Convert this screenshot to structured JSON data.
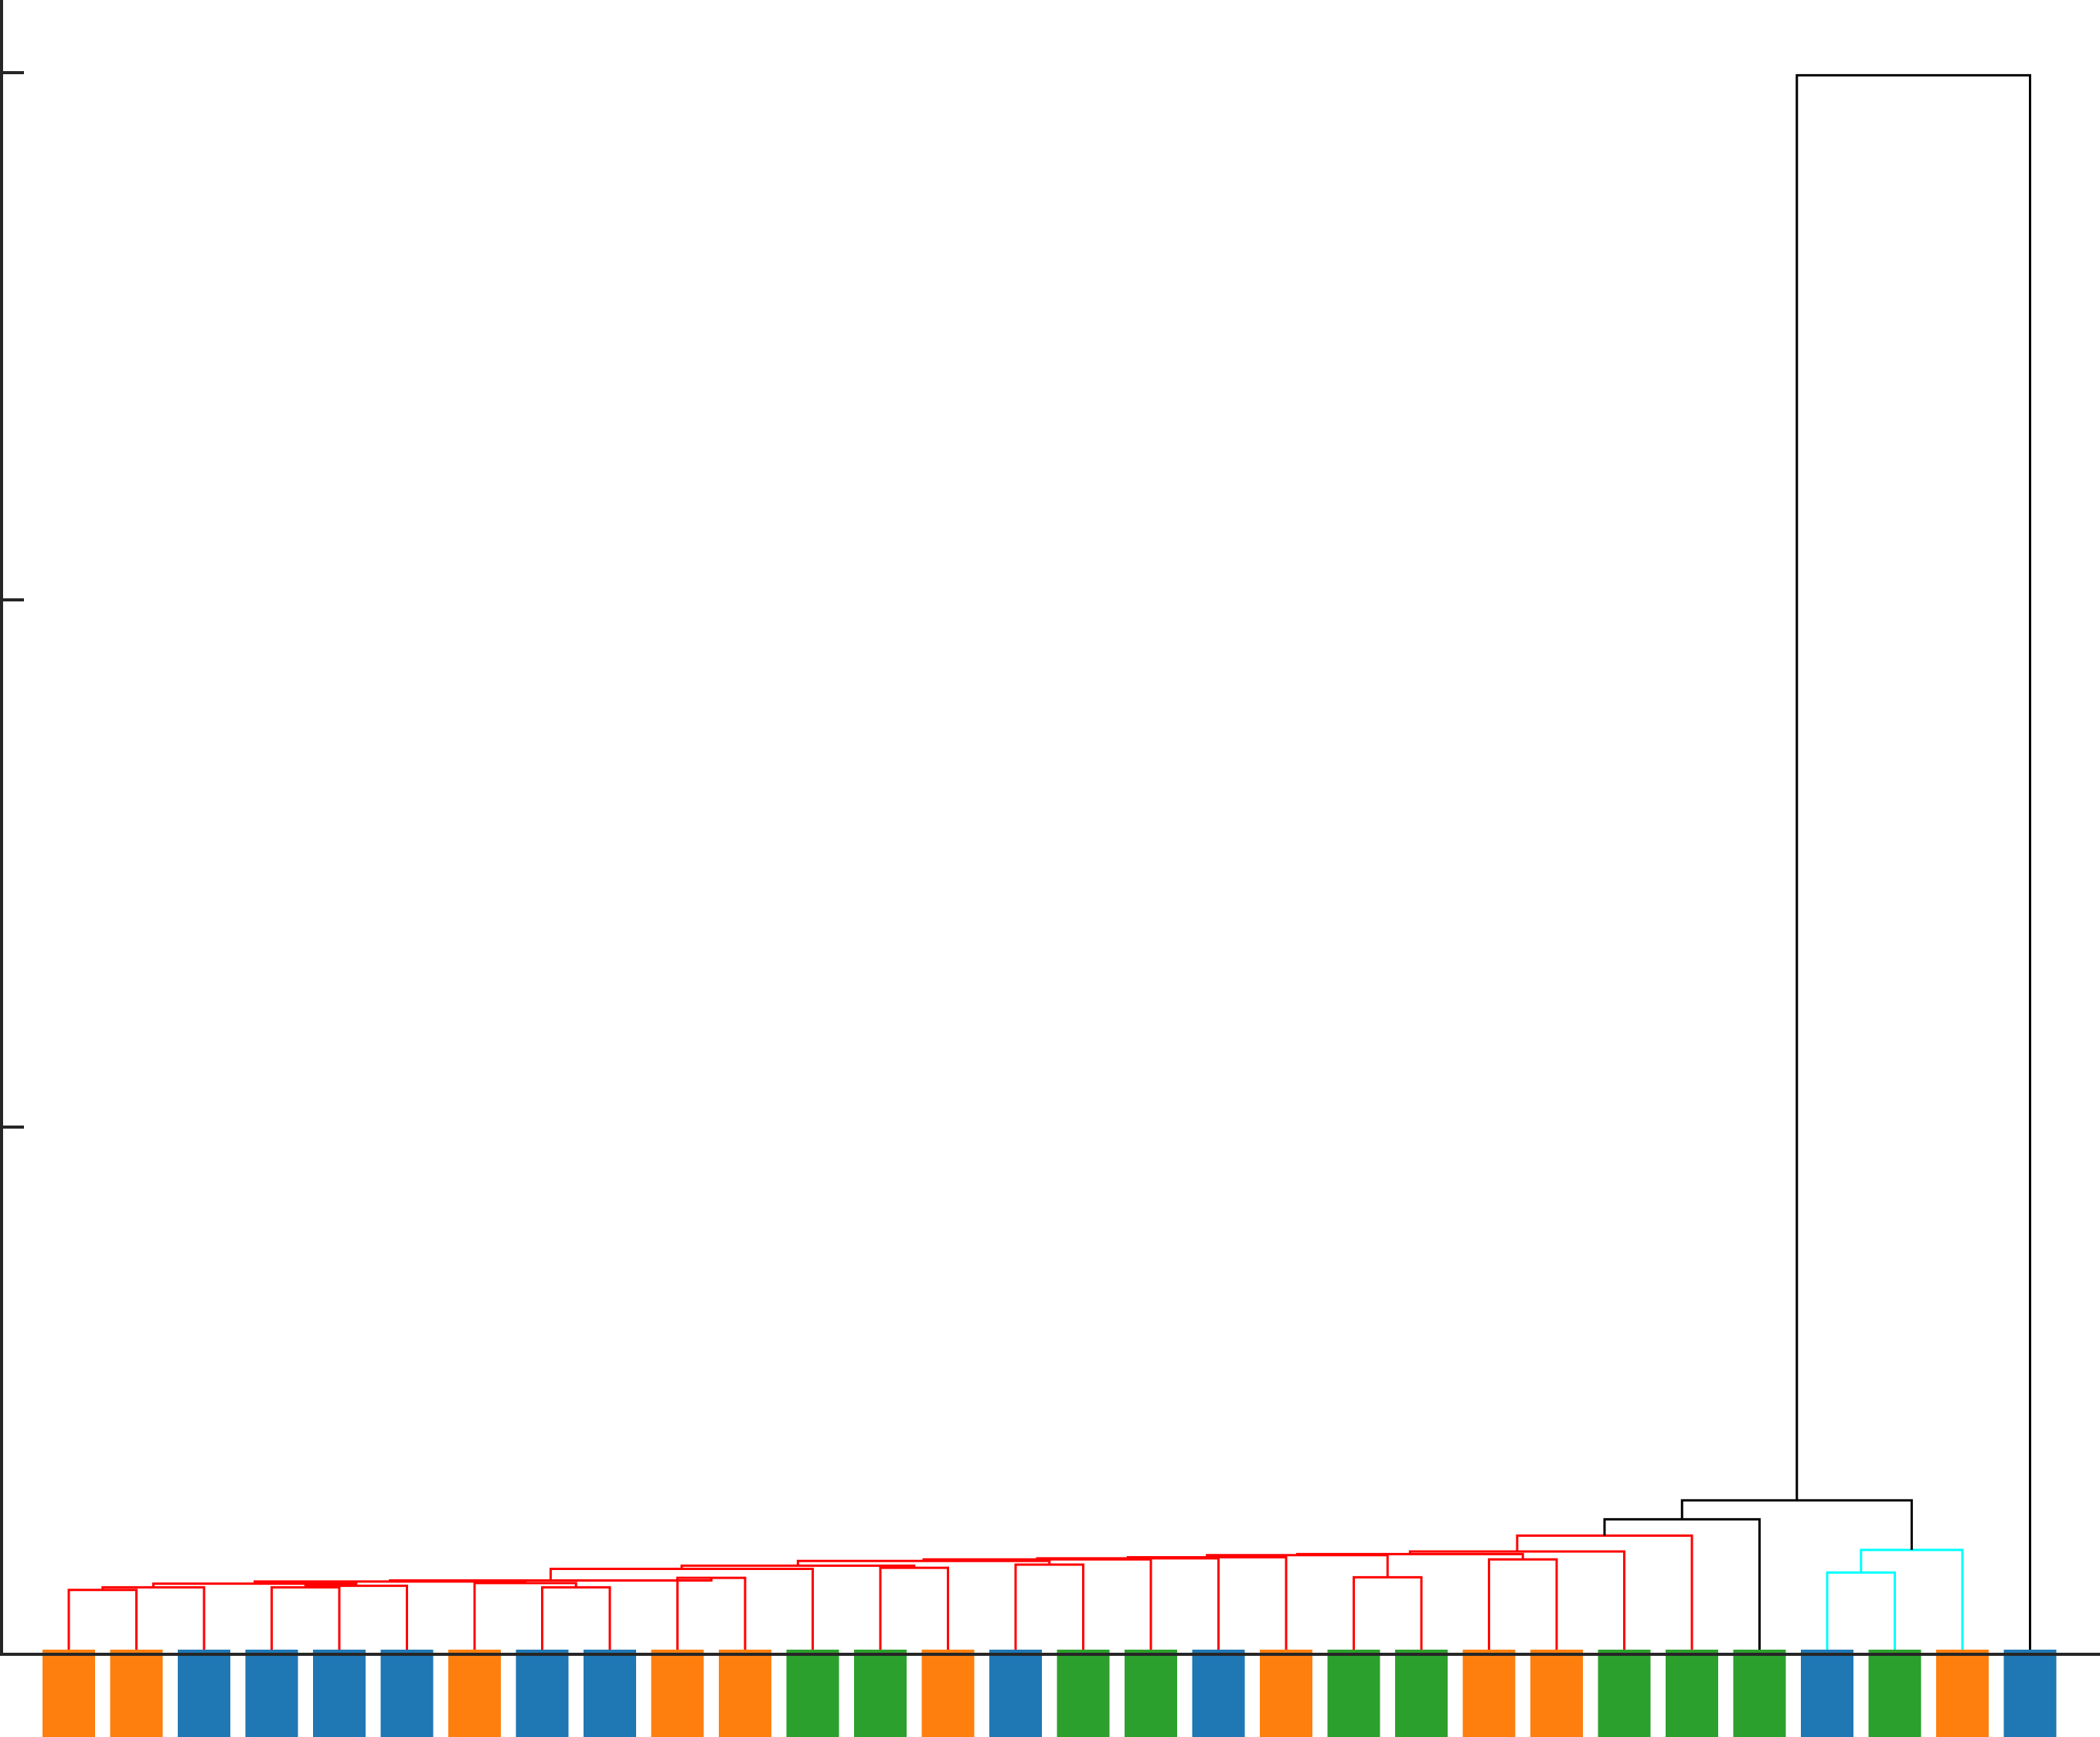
{
  "chart_data": {
    "type": "dendrogram",
    "title": "",
    "xlabel": "",
    "ylabel": "",
    "ylim": [
      0,
      3.0
    ],
    "y_ticks": [
      1,
      2,
      3
    ],
    "show_tick_labels": false,
    "grid": false,
    "leaf_group_colors": [
      "#1f77b4",
      "#ff7f0e",
      "#2ca02c"
    ],
    "cluster_colors": {
      "main": "#ff0000",
      "small": "#00ffff",
      "above_threshold": "#000000"
    },
    "leaves": [
      "ff7f0e",
      "ff7f0e",
      "1f77b4",
      "1f77b4",
      "1f77b4",
      "1f77b4",
      "ff7f0e",
      "1f77b4",
      "1f77b4",
      "ff7f0e",
      "ff7f0e",
      "2ca02c",
      "2ca02c",
      "ff7f0e",
      "1f77b4",
      "2ca02c",
      "2ca02c",
      "1f77b4",
      "ff7f0e",
      "2ca02c",
      "2ca02c",
      "ff7f0e",
      "ff7f0e",
      "2ca02c",
      "2ca02c",
      "2ca02c",
      "1f77b4",
      "2ca02c",
      "ff7f0e",
      "1f77b4"
    ],
    "merges": [
      {
        "left": 0,
        "right": 1,
        "height": 0.122,
        "color": "#ff0000"
      },
      {
        "left": "m0",
        "right": 2,
        "height": 0.127,
        "color": "#ff0000"
      },
      {
        "left": 3,
        "right": 4,
        "height": 0.127,
        "color": "#ff0000"
      },
      {
        "left": "m2",
        "right": 5,
        "height": 0.13,
        "color": "#ff0000"
      },
      {
        "left": "m1",
        "right": "m3",
        "height": 0.134,
        "color": "#ff0000"
      },
      {
        "left": 7,
        "right": 8,
        "height": 0.127,
        "color": "#ff0000"
      },
      {
        "left": 6,
        "right": "m5",
        "height": 0.135,
        "color": "#ff0000"
      },
      {
        "left": "m4",
        "right": "m6",
        "height": 0.138,
        "color": "#ff0000"
      },
      {
        "left": 9,
        "right": 10,
        "height": 0.145,
        "color": "#ff0000"
      },
      {
        "left": "m7",
        "right": "m8",
        "height": 0.14,
        "color": "#ff0000"
      },
      {
        "left": "m9",
        "right": 11,
        "height": 0.162,
        "color": "#ff0000"
      },
      {
        "left": 12,
        "right": 13,
        "height": 0.164,
        "color": "#ff0000"
      },
      {
        "left": "m10",
        "right": "m11",
        "height": 0.168,
        "color": "#ff0000"
      },
      {
        "left": 14,
        "right": 15,
        "height": 0.17,
        "color": "#ff0000"
      },
      {
        "left": "m12",
        "right": "m13",
        "height": 0.177,
        "color": "#ff0000"
      },
      {
        "left": "m14",
        "right": 16,
        "height": 0.18,
        "color": "#ff0000"
      },
      {
        "left": "m15",
        "right": 17,
        "height": 0.182,
        "color": "#ff0000"
      },
      {
        "left": "m16",
        "right": 18,
        "height": 0.184,
        "color": "#ff0000"
      },
      {
        "left": 19,
        "right": 20,
        "height": 0.146,
        "color": "#ff0000"
      },
      {
        "left": "m17",
        "right": "m18",
        "height": 0.188,
        "color": "#ff0000"
      },
      {
        "left": 21,
        "right": 22,
        "height": 0.18,
        "color": "#ff0000"
      },
      {
        "left": "m19",
        "right": "m20",
        "height": 0.19,
        "color": "#ff0000"
      },
      {
        "left": "m21",
        "right": 23,
        "height": 0.195,
        "color": "#ff0000"
      },
      {
        "left": "m22",
        "right": 24,
        "height": 0.225,
        "color": "#ff0000"
      },
      {
        "left": "m23",
        "right": 25,
        "height": 0.256,
        "color": "#000000"
      },
      {
        "left": 26,
        "right": 27,
        "height": 0.155,
        "color": "#00ffff"
      },
      {
        "left": "m25",
        "right": 28,
        "height": 0.198,
        "color": "#00ffff"
      },
      {
        "left": "m24",
        "right": "m26",
        "height": 0.292,
        "color": "#000000"
      },
      {
        "left": "m27",
        "right": 29,
        "height": 2.995,
        "color": "#000000"
      }
    ]
  }
}
